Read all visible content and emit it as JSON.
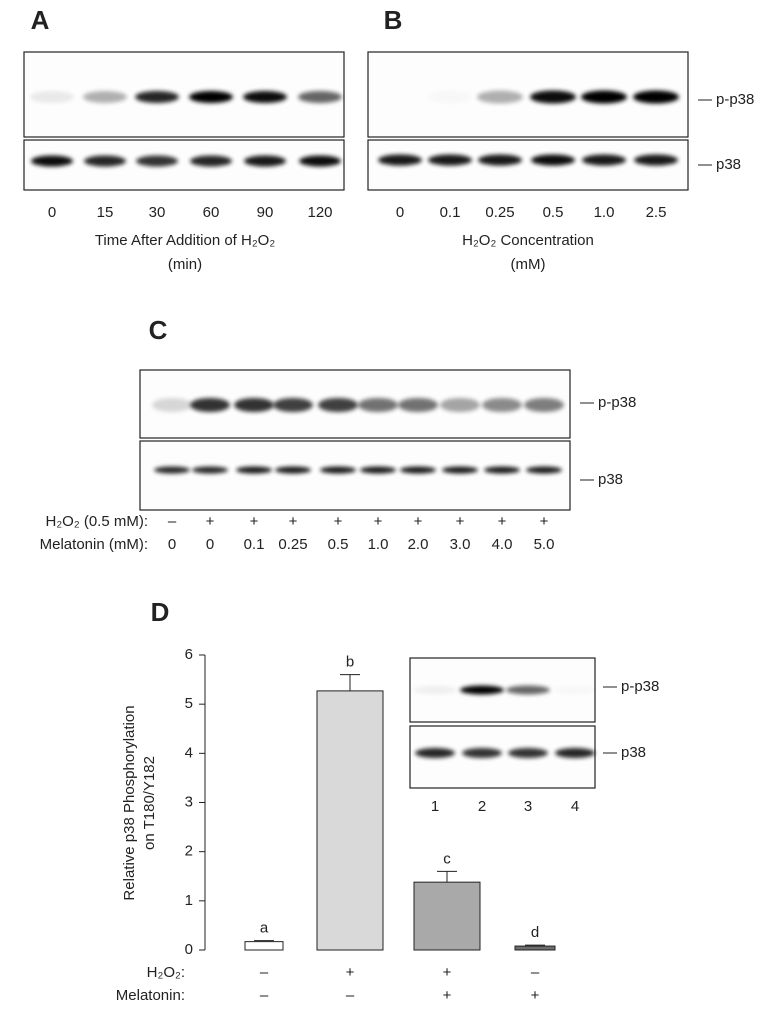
{
  "panel_a": {
    "label": "A",
    "lanes": [
      "0",
      "15",
      "30",
      "60",
      "90",
      "120"
    ],
    "axis_title": [
      "Time After Addition of H₂O₂",
      "(min)"
    ]
  },
  "panel_b": {
    "label": "B",
    "lanes": [
      "0",
      "0.1",
      "0.25",
      "0.5",
      "1.0",
      "2.5"
    ],
    "axis_title": [
      "H₂O₂ Concentration",
      "(mM)"
    ],
    "blot_labels": [
      "p-p38",
      "p38"
    ]
  },
  "panel_c": {
    "label": "C",
    "blot_labels": [
      "p-p38",
      "p38"
    ],
    "rows": [
      {
        "label": "H₂O₂ (0.5 mM):",
        "values": [
          "–",
          "+",
          "+",
          "+",
          "+",
          "+",
          "+",
          "+",
          "+",
          "+"
        ]
      },
      {
        "label": "Melatonin (mM):",
        "values": [
          "0",
          "0",
          "0.1",
          "0.25",
          "0.5",
          "1.0",
          "2.0",
          "3.0",
          "4.0",
          "5.0"
        ]
      }
    ]
  },
  "chart_data": {
    "type": "bar",
    "label": "D",
    "y_label": [
      "Relative p38 Phosphorylation",
      "on T180/Y182"
    ],
    "categories": [
      null,
      null,
      null,
      null
    ],
    "values": [
      0.17,
      5.27,
      1.38,
      0.08
    ],
    "errors": [
      0.02,
      0.33,
      0.22,
      0.02
    ],
    "colors": [
      "#ffffff",
      "#d9d9d9",
      "#a9a9a9",
      "#6e6e6e"
    ],
    "annotations": [
      "a",
      "b",
      "c",
      "d"
    ],
    "ylim": [
      0,
      6
    ],
    "yticks": [
      0,
      1,
      2,
      3,
      4,
      5,
      6
    ],
    "rows": [
      {
        "label": "H₂O₂:",
        "values": [
          "–",
          "+",
          "+",
          "–"
        ]
      },
      {
        "label": "Melatonin:",
        "values": [
          "–",
          "–",
          "+",
          "+"
        ]
      }
    ],
    "inset": {
      "blot_labels": [
        "p-p38",
        "p38"
      ],
      "lanes": [
        "1",
        "2",
        "3",
        "4"
      ]
    }
  }
}
